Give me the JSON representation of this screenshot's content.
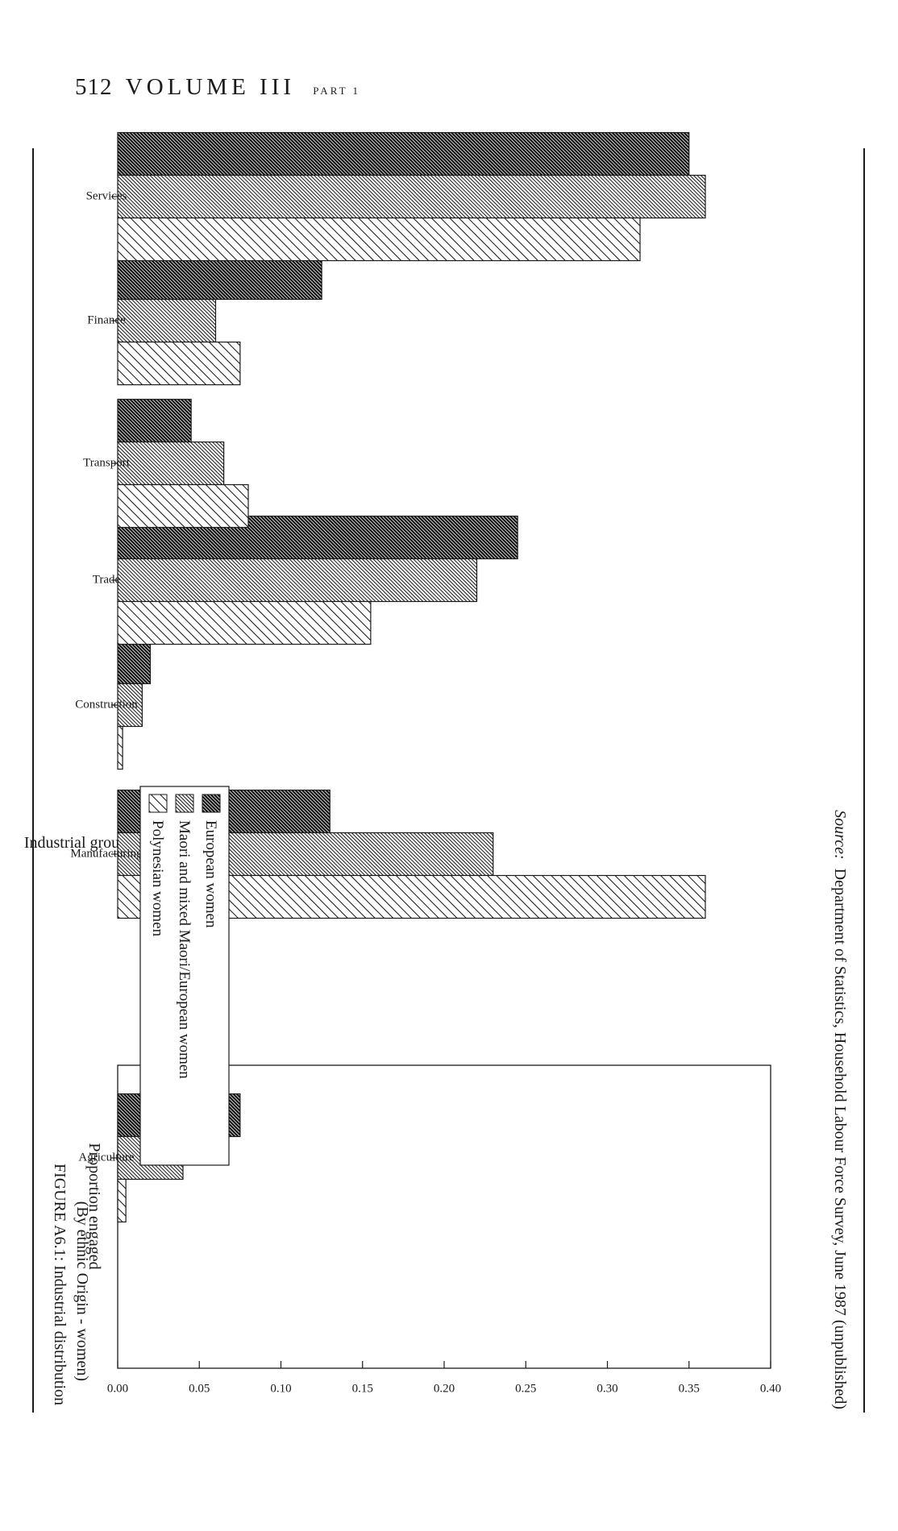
{
  "page_header": {
    "page_number": "512",
    "volume": "VOLUME III",
    "part": "PART 1"
  },
  "figure": {
    "caption": "FIGURE A6.1: Industrial distribution",
    "subcaption": "(By ethnic Origin - women)",
    "source_label": "Source:",
    "source_text": "Department of Statistics, Household Labour Force Survey, June 1987 (unpublished)"
  },
  "chart_data": {
    "type": "bar",
    "orientation": "horizontal",
    "categories": [
      "Agriculture",
      "Manufacturing",
      "Construction",
      "Trade",
      "Transport",
      "Finance",
      "Services"
    ],
    "series": [
      {
        "name": "European women",
        "values": [
          0.075,
          0.13,
          0.02,
          0.245,
          0.045,
          0.125,
          0.35
        ],
        "pattern": "dense-hatch"
      },
      {
        "name": "Maori and mixed Maori/European women",
        "values": [
          0.04,
          0.23,
          0.015,
          0.22,
          0.065,
          0.06,
          0.36
        ],
        "pattern": "fine-hatch"
      },
      {
        "name": "Polynesian women",
        "values": [
          0.005,
          0.36,
          0.003,
          0.155,
          0.08,
          0.075,
          0.32
        ],
        "pattern": "sparse-hatch"
      }
    ],
    "xlabel": "Industrial group",
    "ylabel": "Proportion engaged",
    "ylim": [
      0,
      0.4
    ],
    "yticks": [
      "0.00",
      "0.05",
      "0.10",
      "0.15",
      "0.20",
      "0.25",
      "0.30",
      "0.35",
      "0.40"
    ],
    "legend_position": "upper-middle",
    "grid": false
  }
}
